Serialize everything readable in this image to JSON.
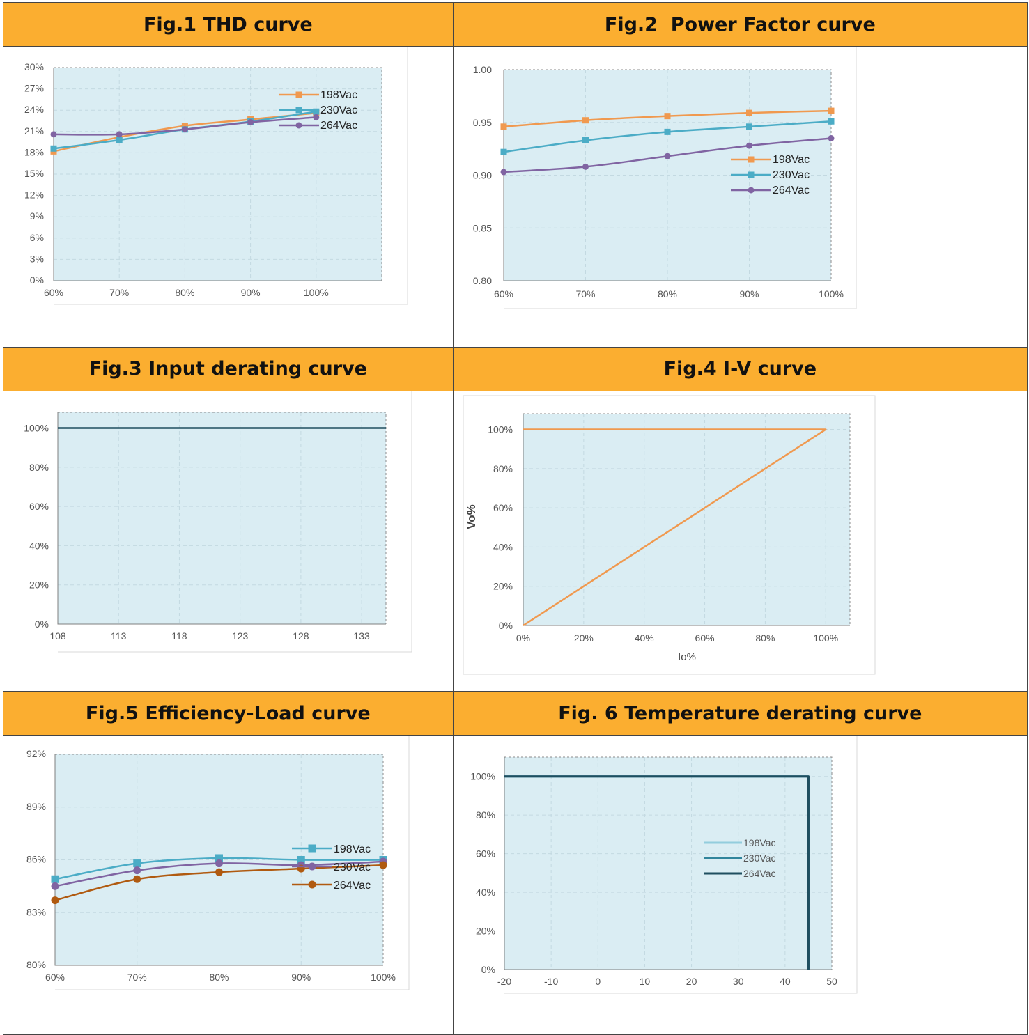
{
  "panels": [
    {
      "title": "Fig.1 THD curve"
    },
    {
      "title": "Fig.2  Power Factor curve"
    },
    {
      "title": "Fig.3 Input derating curve"
    },
    {
      "title": "Fig.4 I-V curve"
    },
    {
      "title": "Fig.5 Efficiency-Load curve"
    },
    {
      "title": "Fig. 6 Temperature derating curve"
    }
  ],
  "chart_data": [
    {
      "type": "line",
      "title": "Fig.1 THD curve",
      "xlabel": "",
      "ylabel": "",
      "x": [
        60,
        70,
        80,
        90,
        100
      ],
      "x_ticks": [
        "60%",
        "70%",
        "80%",
        "90%",
        "100%"
      ],
      "xlim": [
        60,
        110
      ],
      "y_ticks": [
        "30%",
        "27%",
        "24%",
        "21%",
        "18%",
        "15%",
        "12%",
        "9%",
        "6%",
        "3%",
        "0%"
      ],
      "ylim": [
        0,
        30
      ],
      "grid": true,
      "legend": "top-right",
      "colors": [
        "#f0994f",
        "#4bacc6",
        "#8064a2"
      ],
      "series": [
        {
          "name": "198Vac",
          "marker": "square",
          "values": [
            18.2,
            20.2,
            21.8,
            22.7,
            23.6
          ]
        },
        {
          "name": "230Vac",
          "marker": "square",
          "values": [
            18.6,
            19.8,
            21.3,
            22.4,
            23.8
          ]
        },
        {
          "name": "264Vac",
          "marker": "circle",
          "values": [
            20.6,
            20.6,
            21.3,
            22.3,
            23.0
          ]
        }
      ]
    },
    {
      "type": "line",
      "title": "Fig.2  Power Factor curve",
      "xlabel": "",
      "ylabel": "",
      "x": [
        60,
        70,
        80,
        90,
        100
      ],
      "x_ticks": [
        "60%",
        "70%",
        "80%",
        "90%",
        "100%"
      ],
      "xlim": [
        60,
        100
      ],
      "y_ticks": [
        "1.00",
        "0.95",
        "0.90",
        "0.85",
        "0.80"
      ],
      "ylim": [
        0.8,
        1.0
      ],
      "grid": true,
      "legend": "center-right",
      "colors": [
        "#f0994f",
        "#4bacc6",
        "#8064a2"
      ],
      "series": [
        {
          "name": "198Vac",
          "marker": "square",
          "values": [
            0.946,
            0.952,
            0.956,
            0.959,
            0.961
          ]
        },
        {
          "name": "230Vac",
          "marker": "square",
          "values": [
            0.922,
            0.933,
            0.941,
            0.946,
            0.951
          ]
        },
        {
          "name": "264Vac",
          "marker": "circle",
          "values": [
            0.903,
            0.908,
            0.918,
            0.928,
            0.935
          ]
        }
      ]
    },
    {
      "type": "line",
      "title": "Fig.3 Input derating curve",
      "xlabel": "",
      "ylabel": "",
      "x_ticks": [
        "108",
        "113",
        "118",
        "123",
        "128",
        "133"
      ],
      "xlim": [
        108,
        135
      ],
      "y_ticks": [
        "100%",
        "80%",
        "60%",
        "40%",
        "20%",
        "0%"
      ],
      "ylim": [
        0,
        108
      ],
      "grid": true,
      "colors": [
        "#1f4e5f"
      ],
      "series": [
        {
          "x": [
            108,
            135
          ],
          "values": [
            100,
            100
          ]
        }
      ]
    },
    {
      "type": "line",
      "title": "Fig.4 I-V curve",
      "xlabel": "Io%",
      "ylabel": "Vo%",
      "x_ticks": [
        "0%",
        "20%",
        "40%",
        "60%",
        "80%",
        "100%"
      ],
      "xlim": [
        0,
        108
      ],
      "y_ticks": [
        "100%",
        "80%",
        "60%",
        "40%",
        "20%",
        "0%"
      ],
      "ylim": [
        0,
        108
      ],
      "grid": true,
      "colors": [
        "#f0994f"
      ],
      "series": [
        {
          "x": [
            0,
            100,
            0
          ],
          "values": [
            0,
            100,
            100
          ]
        }
      ]
    },
    {
      "type": "line",
      "title": "Fig.5 Efficiency-Load curve",
      "xlabel": "",
      "ylabel": "",
      "x": [
        60,
        70,
        80,
        90,
        100
      ],
      "x_ticks": [
        "60%",
        "70%",
        "80%",
        "90%",
        "100%"
      ],
      "xlim": [
        60,
        100
      ],
      "y_ticks": [
        "92%",
        "89%",
        "86%",
        "83%",
        "80%"
      ],
      "ylim": [
        80,
        92
      ],
      "grid": true,
      "legend": "center-right",
      "colors": [
        "#4bacc6",
        "#8064a2",
        "#b05a10"
      ],
      "series": [
        {
          "name": "198Vac",
          "marker": "square",
          "values": [
            84.9,
            85.8,
            86.1,
            86.0,
            86.0
          ]
        },
        {
          "name": "230Vac",
          "marker": "circle",
          "values": [
            84.5,
            85.4,
            85.8,
            85.7,
            85.9
          ]
        },
        {
          "name": "264Vac",
          "marker": "circle",
          "values": [
            83.7,
            84.9,
            85.3,
            85.5,
            85.7
          ]
        }
      ]
    },
    {
      "type": "line",
      "title": "Fig. 6 Temperature derating curve",
      "xlabel": "",
      "ylabel": "",
      "x_ticks": [
        "-20",
        "-10",
        "0",
        "10",
        "20",
        "30",
        "40",
        "50"
      ],
      "xlim": [
        -20,
        50
      ],
      "y_ticks": [
        "100%",
        "80%",
        "60%",
        "40%",
        "20%",
        "0%"
      ],
      "ylim": [
        0,
        110
      ],
      "grid": true,
      "legend": "center-right",
      "colors": [
        "#93cddd",
        "#31859c",
        "#1f4e5f"
      ],
      "series": [
        {
          "name": "198Vac",
          "x": [
            -20,
            45,
            45
          ],
          "values": [
            100,
            100,
            0
          ]
        },
        {
          "name": "230Vac",
          "x": [
            -20,
            45,
            45
          ],
          "values": [
            100,
            100,
            0
          ]
        },
        {
          "name": "264Vac",
          "x": [
            -20,
            45,
            45
          ],
          "values": [
            100,
            100,
            0
          ]
        }
      ]
    }
  ]
}
